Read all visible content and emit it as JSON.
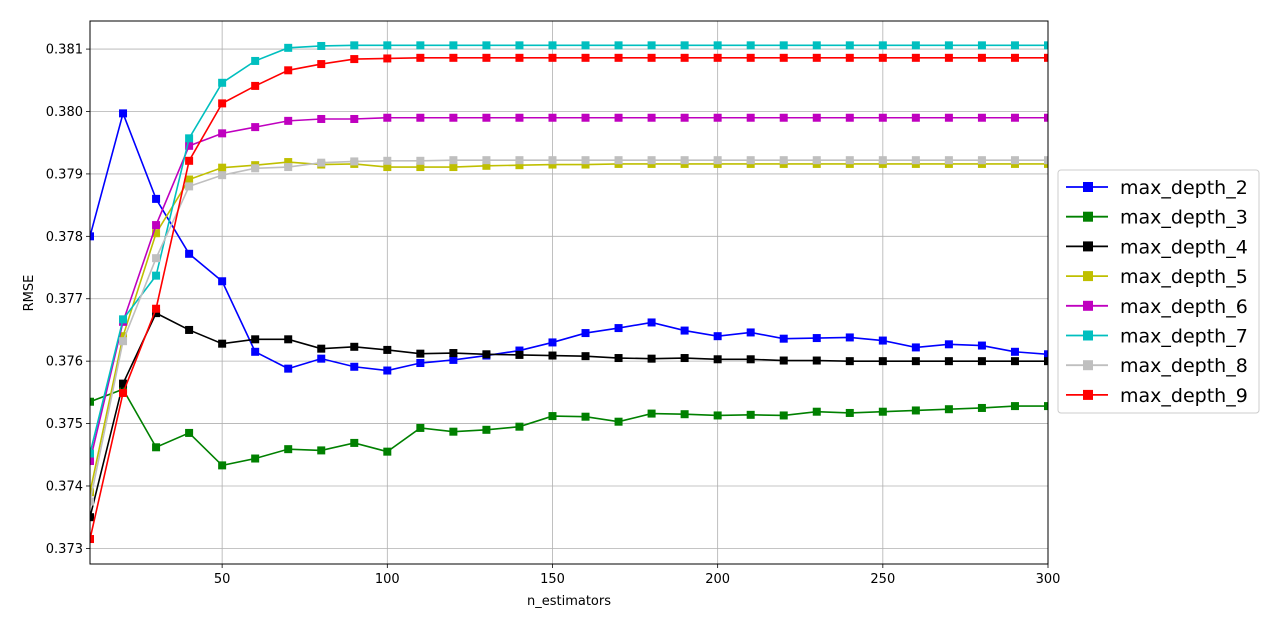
{
  "chart_data": {
    "type": "line",
    "title": "",
    "xlabel": "n_estimators",
    "ylabel": "RMSE",
    "xlim": [
      10,
      300
    ],
    "ylim": [
      0.37275,
      0.38145
    ],
    "xticks": [
      50,
      100,
      150,
      200,
      250,
      300
    ],
    "yticks": [
      0.373,
      0.374,
      0.375,
      0.376,
      0.377,
      0.378,
      0.379,
      0.38,
      0.381
    ],
    "ytick_labels": [
      "0.373",
      "0.374",
      "0.375",
      "0.376",
      "0.377",
      "0.378",
      "0.379",
      "0.380",
      "0.381"
    ],
    "grid": true,
    "legend": "outside-right",
    "marker": "square",
    "x": [
      10,
      20,
      30,
      40,
      50,
      60,
      70,
      80,
      90,
      100,
      110,
      120,
      130,
      140,
      150,
      160,
      170,
      180,
      190,
      200,
      210,
      220,
      230,
      240,
      250,
      260,
      270,
      280,
      290,
      300
    ],
    "series": [
      {
        "name": "max_depth_2",
        "color": "#0000ff",
        "values": [
          0.378,
          0.37997,
          0.3786,
          0.37772,
          0.37728,
          0.37615,
          0.37588,
          0.37604,
          0.37591,
          0.37585,
          0.37597,
          0.37602,
          0.37609,
          0.37617,
          0.3763,
          0.37645,
          0.37653,
          0.37662,
          0.37649,
          0.3764,
          0.37646,
          0.37636,
          0.37637,
          0.37638,
          0.37633,
          0.37622,
          0.37627,
          0.37625,
          0.37615,
          0.37611
        ]
      },
      {
        "name": "max_depth_3",
        "color": "#008000",
        "values": [
          0.37535,
          0.37555,
          0.37462,
          0.37485,
          0.37433,
          0.37444,
          0.37459,
          0.37457,
          0.37469,
          0.37455,
          0.37493,
          0.37487,
          0.3749,
          0.37495,
          0.37512,
          0.37511,
          0.37503,
          0.37516,
          0.37515,
          0.37513,
          0.37514,
          0.37513,
          0.37519,
          0.37517,
          0.37519,
          0.37521,
          0.37523,
          0.37525,
          0.37528,
          0.37528
        ]
      },
      {
        "name": "max_depth_4",
        "color": "#000000",
        "values": [
          0.3735,
          0.37564,
          0.37677,
          0.3765,
          0.37628,
          0.37635,
          0.37635,
          0.3762,
          0.37623,
          0.37618,
          0.37612,
          0.37613,
          0.37611,
          0.3761,
          0.37609,
          0.37608,
          0.37605,
          0.37604,
          0.37605,
          0.37603,
          0.37603,
          0.37601,
          0.37601,
          0.376,
          0.376,
          0.376,
          0.376,
          0.376,
          0.376,
          0.376
        ]
      },
      {
        "name": "max_depth_5",
        "color": "#bfbf00",
        "values": [
          0.3739,
          0.3764,
          0.37805,
          0.37891,
          0.3791,
          0.37914,
          0.37919,
          0.37915,
          0.37916,
          0.37911,
          0.37911,
          0.37911,
          0.37913,
          0.37914,
          0.37915,
          0.37915,
          0.37916,
          0.37916,
          0.37916,
          0.37916,
          0.37916,
          0.37916,
          0.37916,
          0.37916,
          0.37916,
          0.37916,
          0.37916,
          0.37916,
          0.37916,
          0.37916
        ]
      },
      {
        "name": "max_depth_6",
        "color": "#bf00bf",
        "values": [
          0.3744,
          0.37663,
          0.37818,
          0.37945,
          0.37965,
          0.37975,
          0.37985,
          0.37988,
          0.37988,
          0.3799,
          0.3799,
          0.3799,
          0.3799,
          0.3799,
          0.3799,
          0.3799,
          0.3799,
          0.3799,
          0.3799,
          0.3799,
          0.3799,
          0.3799,
          0.3799,
          0.3799,
          0.3799,
          0.3799,
          0.3799,
          0.3799,
          0.3799,
          0.3799
        ]
      },
      {
        "name": "max_depth_7",
        "color": "#00bfbf",
        "values": [
          0.37452,
          0.37667,
          0.37737,
          0.37957,
          0.38046,
          0.38081,
          0.38102,
          0.38105,
          0.38106,
          0.38106,
          0.38106,
          0.38106,
          0.38106,
          0.38106,
          0.38106,
          0.38106,
          0.38106,
          0.38106,
          0.38106,
          0.38106,
          0.38106,
          0.38106,
          0.38106,
          0.38106,
          0.38106,
          0.38106,
          0.38106,
          0.38106,
          0.38106,
          0.38106
        ]
      },
      {
        "name": "max_depth_8",
        "color": "#bfbfbf",
        "values": [
          0.37375,
          0.37632,
          0.37765,
          0.3788,
          0.37898,
          0.37909,
          0.37911,
          0.37918,
          0.3792,
          0.37921,
          0.37921,
          0.37922,
          0.37922,
          0.37922,
          0.37922,
          0.37922,
          0.37922,
          0.37922,
          0.37922,
          0.37922,
          0.37922,
          0.37922,
          0.37922,
          0.37922,
          0.37922,
          0.37922,
          0.37922,
          0.37922,
          0.37922,
          0.37922
        ]
      },
      {
        "name": "max_depth_9",
        "color": "#ff0000",
        "values": [
          0.37315,
          0.37549,
          0.37684,
          0.37921,
          0.38013,
          0.38041,
          0.38066,
          0.38076,
          0.38084,
          0.38085,
          0.38086,
          0.38086,
          0.38086,
          0.38086,
          0.38086,
          0.38086,
          0.38086,
          0.38086,
          0.38086,
          0.38086,
          0.38086,
          0.38086,
          0.38086,
          0.38086,
          0.38086,
          0.38086,
          0.38086,
          0.38086,
          0.38086,
          0.38086
        ]
      }
    ]
  }
}
